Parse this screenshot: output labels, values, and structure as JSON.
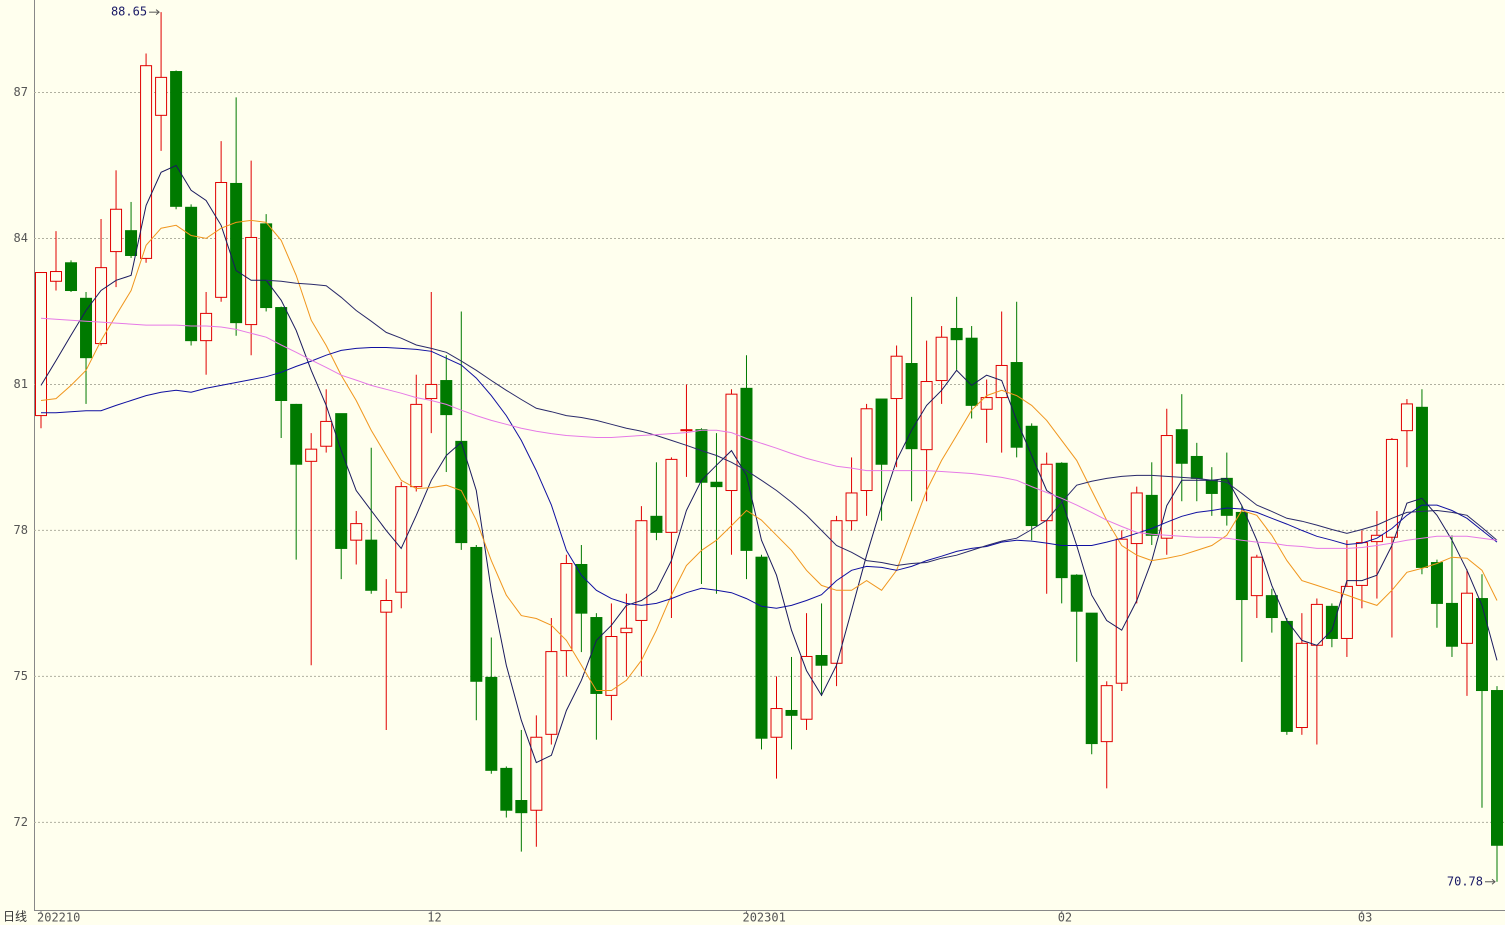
{
  "chart_data": {
    "type": "candlestick",
    "period_label": "日线",
    "categories": [
      "202210",
      null,
      null,
      null,
      null,
      null,
      null,
      null,
      null,
      null,
      null,
      null,
      null,
      null,
      null,
      null,
      null,
      null,
      null,
      null,
      null,
      null,
      null,
      null,
      null,
      null,
      "12",
      null,
      null,
      null,
      null,
      null,
      null,
      null,
      null,
      null,
      null,
      null,
      null,
      null,
      null,
      null,
      null,
      null,
      null,
      null,
      null,
      "202301",
      null,
      null,
      null,
      null,
      null,
      null,
      null,
      null,
      null,
      null,
      null,
      null,
      null,
      null,
      null,
      null,
      null,
      null,
      null,
      null,
      "02",
      null,
      null,
      null,
      null,
      null,
      null,
      null,
      null,
      null,
      null,
      null,
      null,
      null,
      null,
      null,
      null,
      null,
      null,
      null,
      "03",
      null,
      null,
      null,
      null,
      null,
      null,
      null,
      null,
      null
    ],
    "open": [
      80.36,
      83.12,
      83.5,
      82.77,
      81.84,
      83.73,
      84.16,
      83.59,
      86.53,
      87.43,
      84.64,
      81.9,
      82.79,
      85.13,
      82.23,
      84.3,
      82.58,
      80.59,
      79.42,
      79.73,
      80.4,
      77.8,
      77.8,
      76.32,
      76.73,
      78.9,
      80.71,
      81.08,
      79.83,
      77.65,
      74.98,
      73.11,
      72.45,
      72.25,
      73.81,
      75.53,
      77.3,
      76.21,
      74.61,
      75.9,
      76.15,
      78.29,
      77.96,
      80.05,
      80.07,
      78.99,
      78.82,
      80.92,
      77.45,
      73.75,
      74.3,
      74.12,
      75.43,
      75.27,
      78.2,
      78.82,
      80.7,
      80.71,
      81.43,
      79.66,
      81.08,
      82.15,
      81.95,
      80.49,
      80.73,
      81.45,
      80.14,
      78.2,
      79.38,
      77.08,
      76.3,
      73.66,
      74.86,
      77.73,
      78.72,
      77.84,
      80.07,
      79.52,
      79.03,
      79.07,
      78.37,
      76.66,
      76.66,
      76.13,
      73.95,
      75.64,
      76.44,
      75.78,
      76.87,
      77.77,
      77.86,
      80.05,
      80.53,
      77.34,
      76.5,
      75.68,
      76.6,
      74.71
    ],
    "high": [
      83.3,
      84.15,
      83.55,
      82.9,
      84.4,
      85.4,
      84.75,
      87.8,
      88.65,
      87.45,
      84.7,
      82.9,
      86.0,
      86.9,
      85.6,
      84.5,
      82.6,
      80.6,
      80.0,
      80.9,
      80.4,
      78.4,
      79.7,
      77.0,
      79.0,
      81.2,
      82.9,
      81.6,
      82.5,
      77.7,
      75.8,
      73.15,
      73.9,
      74.2,
      76.2,
      77.5,
      77.7,
      76.3,
      76.5,
      76.7,
      78.5,
      79.4,
      79.5,
      81.0,
      80.1,
      80.0,
      80.9,
      81.6,
      77.5,
      75.0,
      75.4,
      76.3,
      76.5,
      78.3,
      79.5,
      80.6,
      80.7,
      81.8,
      82.8,
      81.9,
      82.2,
      82.8,
      82.2,
      81.1,
      82.5,
      82.7,
      80.2,
      79.6,
      79.4,
      77.1,
      76.3,
      74.9,
      78.0,
      78.9,
      79.4,
      80.5,
      80.8,
      79.8,
      79.3,
      79.6,
      78.5,
      77.5,
      76.8,
      76.2,
      76.3,
      76.6,
      76.5,
      77.8,
      78.0,
      78.4,
      79.9,
      80.7,
      80.9,
      77.4,
      77.9,
      77.2,
      77.1,
      74.8
    ],
    "low": [
      80.1,
      82.93,
      82.9,
      80.6,
      81.8,
      83.0,
      83.6,
      83.5,
      85.8,
      84.6,
      81.8,
      81.2,
      82.7,
      82.0,
      81.6,
      82.5,
      79.9,
      77.4,
      75.23,
      79.6,
      77.0,
      77.3,
      76.7,
      73.9,
      76.4,
      78.8,
      80.0,
      79.2,
      77.6,
      74.1,
      73.0,
      72.1,
      71.4,
      71.5,
      73.6,
      75.0,
      75.5,
      73.7,
      74.1,
      75.0,
      75.0,
      77.8,
      76.2,
      79.1,
      76.9,
      76.7,
      77.5,
      77.0,
      73.5,
      72.9,
      73.5,
      73.9,
      74.6,
      74.8,
      78.0,
      78.3,
      78.2,
      79.3,
      78.6,
      78.6,
      80.6,
      81.3,
      80.3,
      79.8,
      79.6,
      79.5,
      77.8,
      76.7,
      76.5,
      75.3,
      73.4,
      72.7,
      74.7,
      76.5,
      77.7,
      77.5,
      78.6,
      78.6,
      78.3,
      78.1,
      75.3,
      76.2,
      75.9,
      73.8,
      73.8,
      73.6,
      75.6,
      75.4,
      76.4,
      76.6,
      75.8,
      79.3,
      77.1,
      76.0,
      75.4,
      74.6,
      72.3,
      70.78
    ],
    "close": [
      83.3,
      83.32,
      82.93,
      81.55,
      83.4,
      84.6,
      83.65,
      87.55,
      87.31,
      84.66,
      81.9,
      82.46,
      85.15,
      82.27,
      84.02,
      82.58,
      80.67,
      79.36,
      79.67,
      80.24,
      77.63,
      78.14,
      76.77,
      76.56,
      78.9,
      80.59,
      81.0,
      80.38,
      77.75,
      74.9,
      73.07,
      72.25,
      72.2,
      73.75,
      75.51,
      77.32,
      76.3,
      74.65,
      75.82,
      75.99,
      78.2,
      77.96,
      79.46,
      80.07,
      78.99,
      78.9,
      80.8,
      77.59,
      73.73,
      74.34,
      74.2,
      75.41,
      75.23,
      78.2,
      78.77,
      80.5,
      79.36,
      81.58,
      79.68,
      81.06,
      81.97,
      81.92,
      80.57,
      80.73,
      81.39,
      79.71,
      78.1,
      79.36,
      77.03,
      76.34,
      73.62,
      74.81,
      77.82,
      78.77,
      77.9,
      79.95,
      79.38,
      79.07,
      78.76,
      78.31,
      76.58,
      77.45,
      76.21,
      73.87,
      75.68,
      76.48,
      75.78,
      76.85,
      77.75,
      77.9,
      79.87,
      80.6,
      77.24,
      76.5,
      75.62,
      76.71,
      74.71,
      71.53
    ],
    "up_color": "#e00000",
    "down_color": "#007a00",
    "series": [
      {
        "color": "#1a1a5e",
        "values": [
          80.98,
          81.49,
          82.01,
          82.52,
          82.93,
          83.14,
          83.24,
          84.68,
          85.36,
          85.5,
          84.99,
          84.78,
          84.27,
          83.34,
          83.14,
          83.14,
          82.73,
          82.11,
          81.29,
          80.57,
          79.64,
          78.82,
          78.41,
          78.0,
          77.63,
          78.31,
          79.03,
          79.54,
          79.81,
          78.82,
          76.77,
          75.23,
          74.1,
          73.23,
          73.38,
          74.3,
          74.92,
          75.74,
          76.05,
          76.46,
          76.56,
          76.77,
          77.38,
          78.41,
          79.03,
          79.34,
          79.64,
          79.13,
          77.8,
          77.08,
          75.95,
          75.12,
          74.61,
          75.23,
          76.36,
          77.49,
          78.51,
          79.44,
          80.06,
          80.57,
          80.88,
          81.29,
          80.98,
          81.19,
          81.08,
          80.26,
          79.54,
          78.82,
          78.62,
          77.69,
          76.67,
          76.15,
          75.95,
          76.56,
          77.38,
          78.51,
          79.03,
          79.03,
          79.03,
          79.07,
          78.51,
          77.8,
          76.87,
          76.15,
          75.74,
          75.64,
          75.95,
          76.97,
          76.97,
          77.08,
          77.69,
          78.56,
          78.66,
          78.31,
          77.8,
          77.18,
          76.46,
          75.33
        ]
      },
      {
        "color": "#f0961e",
        "values": [
          80.67,
          80.71,
          80.98,
          81.29,
          81.9,
          82.42,
          82.93,
          83.86,
          84.21,
          84.27,
          84.06,
          84.0,
          84.21,
          84.33,
          84.37,
          84.33,
          83.96,
          83.24,
          82.32,
          81.8,
          81.19,
          80.67,
          80.06,
          79.54,
          79.03,
          78.86,
          78.88,
          78.93,
          78.82,
          78.21,
          77.38,
          76.67,
          76.25,
          76.19,
          76.05,
          75.74,
          75.23,
          74.71,
          74.71,
          74.92,
          75.33,
          75.95,
          76.67,
          77.28,
          77.59,
          77.8,
          78.1,
          78.41,
          78.21,
          77.9,
          77.59,
          77.18,
          76.87,
          76.77,
          76.77,
          76.97,
          76.77,
          77.18,
          78.0,
          78.82,
          79.44,
          79.95,
          80.47,
          80.77,
          80.88,
          80.77,
          80.57,
          80.26,
          79.85,
          79.44,
          78.82,
          78.21,
          77.69,
          77.49,
          77.38,
          77.43,
          77.49,
          77.59,
          77.69,
          77.9,
          78.41,
          78.31,
          77.9,
          77.38,
          76.97,
          76.87,
          76.77,
          76.67,
          76.56,
          76.46,
          76.77,
          77.14,
          77.22,
          77.32,
          77.45,
          77.43,
          77.18,
          76.56
        ]
      },
      {
        "color": "#1010a0",
        "values": [
          80.42,
          80.42,
          80.44,
          80.46,
          80.46,
          80.57,
          80.67,
          80.77,
          80.84,
          80.88,
          80.84,
          80.92,
          80.98,
          81.04,
          81.1,
          81.16,
          81.25,
          81.37,
          81.48,
          81.6,
          81.7,
          81.74,
          81.76,
          81.76,
          81.74,
          81.72,
          81.68,
          81.54,
          81.4,
          81.13,
          80.77,
          80.36,
          79.85,
          79.23,
          78.52,
          77.59,
          77.08,
          76.77,
          76.6,
          76.5,
          76.46,
          76.5,
          76.6,
          76.72,
          76.81,
          76.77,
          76.72,
          76.6,
          76.44,
          76.4,
          76.46,
          76.56,
          76.68,
          76.97,
          77.18,
          77.26,
          77.24,
          77.18,
          77.26,
          77.38,
          77.47,
          77.57,
          77.63,
          77.67,
          77.76,
          77.8,
          77.78,
          77.74,
          77.69,
          77.69,
          77.69,
          77.76,
          77.84,
          77.94,
          78.04,
          78.17,
          78.29,
          78.37,
          78.41,
          78.46,
          78.44,
          78.37,
          78.25,
          78.13,
          78.0,
          77.88,
          77.8,
          77.71,
          77.74,
          77.84,
          78.04,
          78.31,
          78.52,
          78.52,
          78.41,
          78.25,
          78.0,
          77.76
        ]
      },
      {
        "color": "#2a2a6a",
        "values": [
          null,
          null,
          null,
          null,
          null,
          null,
          null,
          null,
          null,
          null,
          null,
          null,
          null,
          null,
          null,
          83.14,
          83.12,
          83.08,
          83.06,
          83.03,
          82.79,
          82.52,
          82.3,
          82.07,
          81.95,
          81.81,
          81.74,
          81.66,
          81.48,
          81.29,
          81.08,
          80.88,
          80.69,
          80.51,
          80.44,
          80.36,
          80.32,
          80.26,
          80.18,
          80.1,
          80.04,
          79.95,
          79.85,
          79.75,
          79.64,
          79.54,
          79.4,
          79.23,
          79.03,
          78.82,
          78.58,
          78.31,
          78.0,
          77.69,
          77.55,
          77.38,
          77.34,
          77.28,
          77.32,
          77.34,
          77.43,
          77.49,
          77.59,
          77.69,
          77.78,
          77.84,
          78.02,
          78.21,
          78.58,
          78.93,
          79.01,
          79.07,
          79.11,
          79.13,
          79.13,
          79.11,
          79.09,
          79.07,
          79.03,
          78.99,
          78.76,
          78.52,
          78.39,
          78.25,
          78.19,
          78.11,
          78.02,
          77.94,
          78.02,
          78.11,
          78.25,
          78.37,
          78.39,
          78.41,
          78.37,
          78.31,
          78.06,
          77.8
        ]
      },
      {
        "color": "#e67ae6",
        "values": [
          82.36,
          82.34,
          82.32,
          82.3,
          82.28,
          82.26,
          82.24,
          82.22,
          82.22,
          82.22,
          82.2,
          82.2,
          82.18,
          82.13,
          82.05,
          81.97,
          81.81,
          81.66,
          81.5,
          81.35,
          81.19,
          81.09,
          80.98,
          80.9,
          80.82,
          80.73,
          80.67,
          80.59,
          80.47,
          80.36,
          80.26,
          80.18,
          80.1,
          80.04,
          79.99,
          79.95,
          79.93,
          79.91,
          79.91,
          79.93,
          79.95,
          79.97,
          79.99,
          80.01,
          80.06,
          80.06,
          80.01,
          79.89,
          79.79,
          79.69,
          79.58,
          79.48,
          79.4,
          79.32,
          79.28,
          79.23,
          79.23,
          79.23,
          79.23,
          79.23,
          79.21,
          79.19,
          79.17,
          79.13,
          79.09,
          79.03,
          78.9,
          78.78,
          78.66,
          78.52,
          78.37,
          78.21,
          78.08,
          77.96,
          77.92,
          77.9,
          77.88,
          77.86,
          77.86,
          77.84,
          77.8,
          77.76,
          77.74,
          77.69,
          77.67,
          77.63,
          77.63,
          77.63,
          77.65,
          77.69,
          77.74,
          77.8,
          77.84,
          77.88,
          77.88,
          77.88,
          77.84,
          77.8
        ]
      }
    ],
    "ylim": [
      70.2,
      88.9
    ],
    "yticks": [
      72,
      75,
      78,
      81,
      84,
      87
    ],
    "grid": true,
    "mark_extremes": true
  }
}
